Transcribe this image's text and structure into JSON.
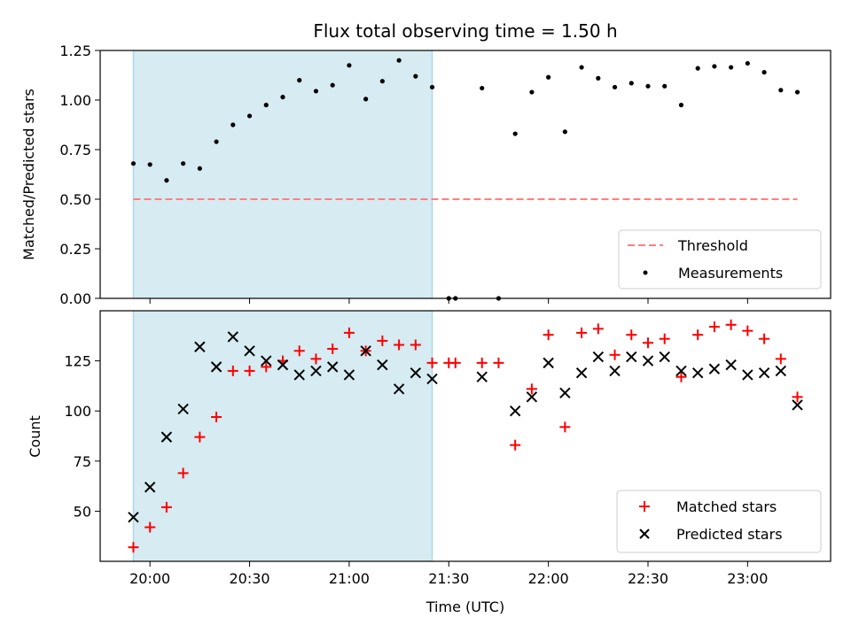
{
  "chart_data": [
    {
      "type": "scatter",
      "title": "Flux total observing time = 1.50 h",
      "ylabel": "Matched/Predicted stars",
      "ylim": [
        0,
        1.25
      ],
      "yticks": [
        "0.00",
        "0.25",
        "0.50",
        "0.75",
        "1.00",
        "1.25"
      ],
      "shaded_span": [
        "19:55",
        "21:25"
      ],
      "threshold": {
        "name": "Threshold",
        "value": 0.5,
        "x_range": [
          "19:55",
          "23:15"
        ],
        "color": "#ff7f7f"
      },
      "series": [
        {
          "name": "Measurements",
          "color": "#000000",
          "marker": "dot",
          "points": [
            [
              "19:55",
              0.68
            ],
            [
              "20:00",
              0.675
            ],
            [
              "20:05",
              0.595
            ],
            [
              "20:10",
              0.68
            ],
            [
              "20:15",
              0.655
            ],
            [
              "20:20",
              0.79
            ],
            [
              "20:25",
              0.875
            ],
            [
              "20:30",
              0.92
            ],
            [
              "20:35",
              0.975
            ],
            [
              "20:40",
              1.015
            ],
            [
              "20:45",
              1.1
            ],
            [
              "20:50",
              1.045
            ],
            [
              "20:55",
              1.075
            ],
            [
              "21:00",
              1.175
            ],
            [
              "21:05",
              1.005
            ],
            [
              "21:10",
              1.095
            ],
            [
              "21:15",
              1.2
            ],
            [
              "21:20",
              1.12
            ],
            [
              "21:25",
              1.065
            ],
            [
              "21:30",
              0.0
            ],
            [
              "21:32",
              0.0
            ],
            [
              "21:40",
              1.06
            ],
            [
              "21:45",
              0.0
            ],
            [
              "21:50",
              0.83
            ],
            [
              "21:55",
              1.04
            ],
            [
              "22:00",
              1.115
            ],
            [
              "22:05",
              0.84
            ],
            [
              "22:10",
              1.165
            ],
            [
              "22:15",
              1.11
            ],
            [
              "22:20",
              1.065
            ],
            [
              "22:25",
              1.085
            ],
            [
              "22:30",
              1.07
            ],
            [
              "22:35",
              1.07
            ],
            [
              "22:40",
              0.975
            ],
            [
              "22:45",
              1.16
            ],
            [
              "22:50",
              1.17
            ],
            [
              "22:55",
              1.165
            ],
            [
              "23:00",
              1.185
            ],
            [
              "23:05",
              1.14
            ],
            [
              "23:10",
              1.05
            ],
            [
              "23:15",
              1.04
            ]
          ]
        }
      ],
      "legend_position": "lower-right"
    },
    {
      "type": "scatter",
      "xlabel": "Time (UTC)",
      "ylabel": "Count",
      "ylim": [
        25,
        150
      ],
      "yticks": [
        "50",
        "75",
        "100",
        "125"
      ],
      "xticks": [
        "20:00",
        "20:30",
        "21:00",
        "21:30",
        "22:00",
        "22:30",
        "23:00"
      ],
      "shaded_span": [
        "19:55",
        "21:25"
      ],
      "series": [
        {
          "name": "Matched stars",
          "color": "#ff0000",
          "marker": "plus",
          "points": [
            [
              "19:55",
              32
            ],
            [
              "20:00",
              42
            ],
            [
              "20:05",
              52
            ],
            [
              "20:10",
              69
            ],
            [
              "20:15",
              87
            ],
            [
              "20:20",
              97
            ],
            [
              "20:25",
              120
            ],
            [
              "20:30",
              120
            ],
            [
              "20:35",
              122
            ],
            [
              "20:40",
              125
            ],
            [
              "20:45",
              130
            ],
            [
              "20:50",
              126
            ],
            [
              "20:55",
              131
            ],
            [
              "21:00",
              139
            ],
            [
              "21:05",
              130
            ],
            [
              "21:10",
              135
            ],
            [
              "21:15",
              133
            ],
            [
              "21:20",
              133
            ],
            [
              "21:25",
              124
            ],
            [
              "21:30",
              124
            ],
            [
              "21:32",
              124
            ],
            [
              "21:40",
              124
            ],
            [
              "21:45",
              124
            ],
            [
              "21:50",
              83
            ],
            [
              "21:55",
              111
            ],
            [
              "22:00",
              138
            ],
            [
              "22:05",
              92
            ],
            [
              "22:10",
              139
            ],
            [
              "22:15",
              141
            ],
            [
              "22:20",
              128
            ],
            [
              "22:25",
              138
            ],
            [
              "22:30",
              134
            ],
            [
              "22:35",
              136
            ],
            [
              "22:40",
              117
            ],
            [
              "22:45",
              138
            ],
            [
              "22:50",
              142
            ],
            [
              "22:55",
              143
            ],
            [
              "23:00",
              140
            ],
            [
              "23:05",
              136
            ],
            [
              "23:10",
              126
            ],
            [
              "23:15",
              107
            ]
          ]
        },
        {
          "name": "Predicted stars",
          "color": "#000000",
          "marker": "x",
          "points": [
            [
              "19:55",
              47
            ],
            [
              "20:00",
              62
            ],
            [
              "20:05",
              87
            ],
            [
              "20:10",
              101
            ],
            [
              "20:15",
              132
            ],
            [
              "20:20",
              122
            ],
            [
              "20:25",
              137
            ],
            [
              "20:30",
              130
            ],
            [
              "20:35",
              125
            ],
            [
              "20:40",
              123
            ],
            [
              "20:45",
              118
            ],
            [
              "20:50",
              120
            ],
            [
              "20:55",
              122
            ],
            [
              "21:00",
              118
            ],
            [
              "21:05",
              130
            ],
            [
              "21:10",
              123
            ],
            [
              "21:15",
              111
            ],
            [
              "21:20",
              119
            ],
            [
              "21:25",
              116
            ],
            [
              "21:40",
              117
            ],
            [
              "21:50",
              100
            ],
            [
              "21:55",
              107
            ],
            [
              "22:00",
              124
            ],
            [
              "22:05",
              109
            ],
            [
              "22:10",
              119
            ],
            [
              "22:15",
              127
            ],
            [
              "22:20",
              120
            ],
            [
              "22:25",
              127
            ],
            [
              "22:30",
              125
            ],
            [
              "22:35",
              127
            ],
            [
              "22:40",
              120
            ],
            [
              "22:45",
              119
            ],
            [
              "22:50",
              121
            ],
            [
              "22:55",
              123
            ],
            [
              "23:00",
              118
            ],
            [
              "23:05",
              119
            ],
            [
              "23:10",
              120
            ],
            [
              "23:15",
              103
            ]
          ]
        }
      ],
      "legend_position": "lower-right"
    }
  ],
  "colors": {
    "shade": "#add8e6",
    "threshold": "#ff7f7f",
    "matched": "#ff0000",
    "predicted": "#000000"
  }
}
